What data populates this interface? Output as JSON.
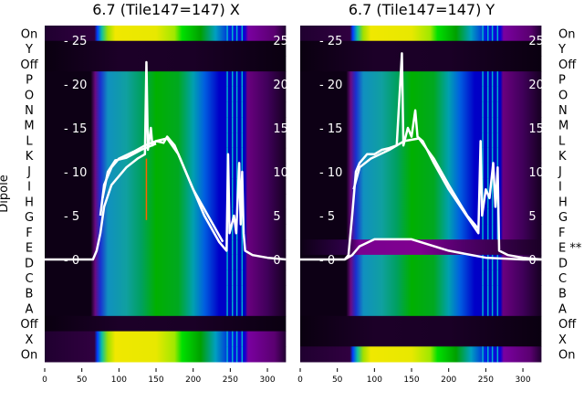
{
  "chart_data": [
    {
      "type": "heatmap",
      "title": "6.7 (Tile147=147) X",
      "ylabel": "Dipole",
      "xlim": [
        0,
        325
      ],
      "inner_ylim": [
        0,
        25
      ],
      "xticks": [
        "0",
        "50",
        "100",
        "150",
        "200",
        "250",
        "300"
      ],
      "inner_yticks": [
        "0",
        "5",
        "10",
        "15",
        "20",
        "25"
      ],
      "rows": [
        "On",
        "Y",
        "Off",
        "P",
        "O",
        "N",
        "M",
        "L",
        "K",
        "J",
        "I",
        "H",
        "G",
        "F",
        "E",
        "D",
        "C",
        "B",
        "A",
        "Off",
        "X",
        "On"
      ],
      "row_kinds": [
        "on",
        "off",
        "off",
        "dip",
        "dip",
        "dip",
        "dip",
        "dip",
        "dip",
        "dip",
        "dip",
        "dip",
        "dip",
        "dip",
        "dip",
        "dip",
        "dip",
        "dip",
        "dip",
        "off",
        "on",
        "on"
      ],
      "traces": [
        [
          [
            0,
            0
          ],
          [
            65,
            0
          ],
          [
            70,
            1
          ],
          [
            75,
            3
          ],
          [
            80,
            6
          ],
          [
            90,
            8.5
          ],
          [
            100,
            9.5
          ],
          [
            110,
            10.5
          ],
          [
            125,
            11.5
          ],
          [
            135,
            12
          ],
          [
            137,
            22.5
          ],
          [
            139,
            12.5
          ],
          [
            143,
            15
          ],
          [
            145,
            13
          ],
          [
            150,
            13.5
          ],
          [
            160,
            13.3
          ],
          [
            165,
            14
          ],
          [
            175,
            13
          ],
          [
            185,
            11
          ],
          [
            195,
            9
          ],
          [
            205,
            7
          ],
          [
            215,
            5
          ],
          [
            225,
            3.5
          ],
          [
            235,
            2
          ],
          [
            245,
            1
          ],
          [
            247,
            12
          ],
          [
            249,
            3
          ],
          [
            255,
            5
          ],
          [
            258,
            3
          ],
          [
            262,
            11
          ],
          [
            264,
            4
          ],
          [
            266,
            10
          ],
          [
            268,
            3
          ],
          [
            270,
            1
          ],
          [
            280,
            0.5
          ],
          [
            300,
            0.2
          ],
          [
            325,
            0
          ]
        ],
        [
          [
            75,
            5
          ],
          [
            80,
            8.5
          ],
          [
            90,
            10.5
          ],
          [
            100,
            11.5
          ],
          [
            120,
            12.3
          ],
          [
            135,
            13
          ],
          [
            150,
            13.5
          ],
          [
            165,
            13.8
          ],
          [
            180,
            12
          ],
          [
            200,
            8
          ],
          [
            220,
            5
          ],
          [
            240,
            2
          ]
        ],
        [
          [
            78,
            7
          ],
          [
            85,
            10
          ],
          [
            95,
            11.3
          ],
          [
            110,
            11.6
          ],
          [
            130,
            12.5
          ],
          [
            150,
            13.2
          ]
        ]
      ]
    },
    {
      "type": "heatmap",
      "title": "6.7 (Tile147=147) Y",
      "xlim": [
        0,
        325
      ],
      "inner_ylim": [
        0,
        25
      ],
      "xticks": [
        "0",
        "50",
        "100",
        "150",
        "200",
        "250",
        "300"
      ],
      "inner_yticks": [
        "0",
        "5",
        "10",
        "15",
        "20",
        "25"
      ],
      "rows": [
        "On",
        "Y",
        "Off",
        "P",
        "O",
        "N",
        "M",
        "L",
        "K",
        "J",
        "I",
        "H",
        "G",
        "F",
        "E **",
        "D",
        "C",
        "B",
        "A",
        "Off",
        "X",
        "On"
      ],
      "row_kinds": [
        "on",
        "off",
        "off",
        "dip",
        "dip",
        "dip",
        "dip",
        "dip",
        "dip",
        "dip",
        "dip",
        "dip",
        "dip",
        "dip",
        "low",
        "dip",
        "dip",
        "dip",
        "dip",
        "off",
        "off",
        "on"
      ],
      "traces": [
        [
          [
            0,
            0
          ],
          [
            60,
            0
          ],
          [
            65,
            0.5
          ],
          [
            70,
            5
          ],
          [
            75,
            10
          ],
          [
            80,
            11
          ],
          [
            90,
            12
          ],
          [
            100,
            12
          ],
          [
            110,
            12.5
          ],
          [
            120,
            12.7
          ],
          [
            130,
            13
          ],
          [
            137,
            23.5
          ],
          [
            139,
            13
          ],
          [
            145,
            15
          ],
          [
            150,
            14
          ],
          [
            155,
            17
          ],
          [
            158,
            14
          ],
          [
            165,
            13.5
          ],
          [
            180,
            11
          ],
          [
            200,
            8
          ],
          [
            220,
            5.5
          ],
          [
            240,
            3
          ],
          [
            243,
            13.5
          ],
          [
            245,
            5
          ],
          [
            250,
            8
          ],
          [
            255,
            7
          ],
          [
            260,
            11
          ],
          [
            263,
            6
          ],
          [
            266,
            10.5
          ],
          [
            268,
            1
          ],
          [
            280,
            0.5
          ],
          [
            300,
            0.2
          ],
          [
            325,
            0
          ]
        ],
        [
          [
            72,
            8
          ],
          [
            80,
            10.5
          ],
          [
            95,
            11.5
          ],
          [
            120,
            12.5
          ],
          [
            140,
            13.5
          ],
          [
            160,
            13.8
          ],
          [
            180,
            11.5
          ],
          [
            200,
            8.5
          ],
          [
            225,
            5
          ],
          [
            240,
            3.5
          ]
        ],
        [
          [
            60,
            0
          ],
          [
            70,
            0.5
          ],
          [
            80,
            1.5
          ],
          [
            100,
            2.3
          ],
          [
            150,
            2.3
          ],
          [
            200,
            1
          ],
          [
            250,
            0.2
          ],
          [
            300,
            0
          ],
          [
            325,
            0
          ]
        ]
      ]
    }
  ]
}
